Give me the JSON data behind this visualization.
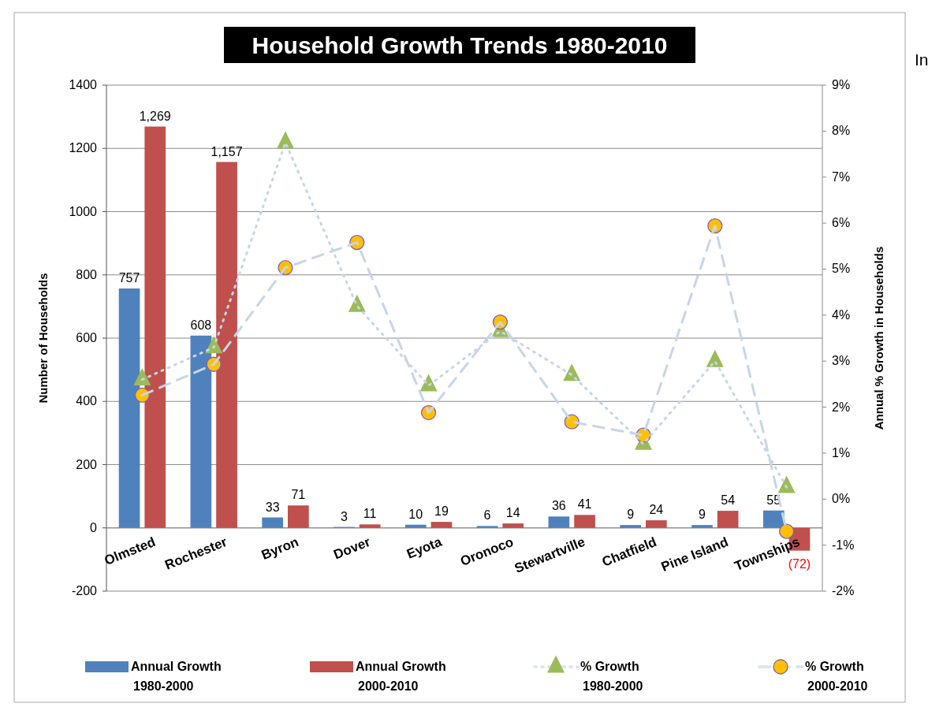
{
  "chart_data": {
    "type": "bar",
    "title": "Household Growth Trends 1980-2010",
    "ylabel": "Number of Households",
    "y2label": "Annual % Growth in Households",
    "categories": [
      "Olmsted",
      "Rochester",
      "Byron",
      "Dover",
      "Eyota",
      "Oronoco",
      "Stewartville",
      "Chatfield",
      "Pine Island",
      "Townships"
    ],
    "series": [
      {
        "name": "Annual Growth 1980-2000",
        "color": "#4f81bd",
        "values": [
          757,
          608,
          33,
          3,
          10,
          6,
          36,
          9,
          9,
          55
        ],
        "value_labels": [
          "757",
          "608",
          "33",
          "3",
          "10",
          "6",
          "36",
          "9",
          "9",
          "55"
        ]
      },
      {
        "name": "Annual Growth 2000-2010",
        "color": "#c0504d",
        "values": [
          1269,
          1157,
          71,
          11,
          19,
          14,
          41,
          24,
          54,
          -72
        ],
        "value_labels": [
          "1,269",
          "1,157",
          "71",
          "11",
          "19",
          "14",
          "41",
          "24",
          "54",
          "(72)"
        ]
      },
      {
        "name": "% Growth 1980-2000",
        "type": "line",
        "axis": "y2",
        "color": "#9bbb59",
        "marker": "triangle",
        "line_style": "dotted",
        "values": [
          2.6,
          3.3,
          7.75,
          4.2,
          2.47,
          3.65,
          2.7,
          1.2,
          3.0,
          0.26
        ]
      },
      {
        "name": "% Growth 2000-2010",
        "type": "line",
        "axis": "y2",
        "color": "#ffc000",
        "marker": "circle",
        "line_style": "dashed",
        "values": [
          2.26,
          2.93,
          5.03,
          5.58,
          1.88,
          3.85,
          1.68,
          1.39,
          5.94,
          -0.7
        ]
      }
    ],
    "ylim": [
      -200,
      1400
    ],
    "yticks": [
      -200,
      0,
      200,
      400,
      600,
      800,
      1000,
      1200,
      1400
    ],
    "y2lim": [
      -2,
      9
    ],
    "y2ticks": [
      {
        "value": -2,
        "label": "-2%"
      },
      {
        "value": -1,
        "label": "-1%"
      },
      {
        "value": 0,
        "label": "0%"
      },
      {
        "value": 1,
        "label": "1%"
      },
      {
        "value": 2,
        "label": "2%"
      },
      {
        "value": 3,
        "label": "3%"
      },
      {
        "value": 4,
        "label": "4%"
      },
      {
        "value": 5,
        "label": "5%"
      },
      {
        "value": 6,
        "label": "6%"
      },
      {
        "value": 7,
        "label": "7%"
      },
      {
        "value": 8,
        "label": "8%"
      },
      {
        "value": 9,
        "label": "9%"
      }
    ],
    "grid": "y",
    "legend": "bottom",
    "annotations": [
      "In"
    ]
  }
}
